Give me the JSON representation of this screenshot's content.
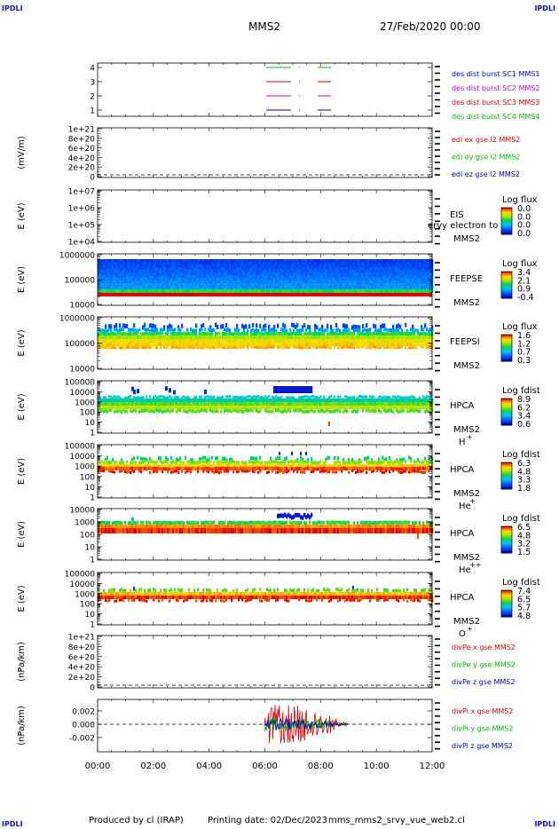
{
  "corner_tag": "IPDLI",
  "header": {
    "spacecraft": "MMS2",
    "date": "27/Feb/2020 00:00"
  },
  "footer": {
    "produced_by": "Produced by cl (IRAP)",
    "printing_date": "Printing date: 02/Dec/2023",
    "filename": "mms_mms2_srvy_vue_web2.cl"
  },
  "colors": {
    "blue": "#0000cc",
    "red": "#dd0000",
    "magenta": "#cc00cc",
    "green": "#00bb00",
    "black": "#000000"
  },
  "chart_data": {
    "type": "multi-panel",
    "x_axis": {
      "range": [
        "00:00",
        "12:00"
      ],
      "ticks": [
        "00:00",
        "02:00",
        "04:00",
        "06:00",
        "08:00",
        "10:00",
        "12:00"
      ]
    },
    "panels": [
      {
        "id": "burst",
        "kind": "burst",
        "ylabel": "",
        "yticks": [
          "4",
          "3",
          "2",
          "1"
        ],
        "legend": [
          {
            "text": "des dist burst SC1 MMS1",
            "color": "#0000cc"
          },
          {
            "text": "des dist burst SC2 MMS2",
            "color": "#cc00cc"
          },
          {
            "text": "des dist burst SC3 MMS3",
            "color": "#dd0000"
          },
          {
            "text": "des dist burst SC4 MMS4",
            "color": "#00bb00"
          }
        ]
      },
      {
        "id": "edi",
        "kind": "line-empty",
        "ylabel": "(mV/m)",
        "yticks": [
          "1e+21",
          "8e+20",
          "6e+20",
          "4e+20",
          "2e+20",
          "0"
        ],
        "legend": [
          {
            "text": "edi ex gse l2 MMS2",
            "color": "#dd0000"
          },
          {
            "text": "edi ey gse l2 MMS2",
            "color": "#00bb00"
          },
          {
            "text": "edi ez gse l2 MMS2",
            "color": "#0000cc"
          }
        ]
      },
      {
        "id": "eis",
        "kind": "spectro-empty",
        "ylabel": "E (eV)",
        "yticks": [
          "1e+07",
          "1e+06",
          "1e+05",
          "1e+04"
        ],
        "label1": "EIS",
        "label2": "MMS2",
        "overlay": "ervy electron to",
        "cbar_title": "Log flux",
        "cbar_ticks": [
          "0.0",
          "0.0",
          "0.0",
          "0.0"
        ]
      },
      {
        "id": "feepse",
        "kind": "spectro",
        "ylabel": "E (eV)",
        "yticks": [
          "1000000",
          "100000",
          "10000"
        ],
        "label1": "FEEPSE",
        "label2": "MMS2",
        "cbar_title": "Log flux",
        "cbar_ticks": [
          "3.4",
          "2.1",
          "0.9",
          "-0.4"
        ]
      },
      {
        "id": "feepsi",
        "kind": "spectro",
        "ylabel": "E (eV)",
        "yticks": [
          "1000000",
          "100000",
          "10000"
        ],
        "label1": "FEEPSI",
        "label2": "MMS2",
        "cbar_title": "Log flux",
        "cbar_ticks": [
          "1.6",
          "1.2",
          "0.7",
          "0.3"
        ]
      },
      {
        "id": "hpca_h",
        "kind": "spectro",
        "ylabel": "E (eV)",
        "yticks": [
          "100000",
          "10000",
          "1000",
          "100",
          "10",
          "1"
        ],
        "label1": "HPCA",
        "label2": "MMS2",
        "species": "H",
        "charge": "+",
        "cbar_title": "Log fdist",
        "cbar_ticks": [
          "8.9",
          "6.2",
          "3.4",
          "0.6"
        ]
      },
      {
        "id": "hpca_he1",
        "kind": "spectro",
        "ylabel": "E (eV)",
        "yticks": [
          "100000",
          "10000",
          "1000",
          "100",
          "10",
          "1"
        ],
        "label1": "HPCA",
        "label2": "MMS2",
        "species": "He",
        "charge": "+",
        "cbar_title": "Log fdist",
        "cbar_ticks": [
          "6.3",
          "4.8",
          "3.3",
          "1.8"
        ]
      },
      {
        "id": "hpca_he2",
        "kind": "spectro",
        "ylabel": "E (eV)",
        "yticks": [
          "10000",
          "1000",
          "100",
          "10",
          "1"
        ],
        "label1": "HPCA",
        "label2": "MMS2",
        "species": "He",
        "charge": "++",
        "cbar_title": "Log fdist",
        "cbar_ticks": [
          "6.5",
          "4.8",
          "3.2",
          "1.5"
        ]
      },
      {
        "id": "hpca_o",
        "kind": "spectro",
        "ylabel": "E (eV)",
        "yticks": [
          "100000",
          "10000",
          "1000",
          "100",
          "10",
          "1"
        ],
        "label1": "HPCA",
        "label2": "MMS2",
        "species": "O",
        "charge": "+",
        "cbar_title": "Log fdist",
        "cbar_ticks": [
          "7.4",
          "6.5",
          "5.7",
          "4.8"
        ]
      },
      {
        "id": "divpe",
        "kind": "line-empty",
        "ylabel": "(nPa/km)",
        "yticks": [
          "1e+21",
          "8e+20",
          "6e+20",
          "4e+20",
          "2e+20",
          "0"
        ],
        "legend": [
          {
            "text": "divPe x gse MMS2",
            "color": "#dd0000"
          },
          {
            "text": "divPe y gse MMS2",
            "color": "#00bb00"
          },
          {
            "text": "divPe z gse MMS2",
            "color": "#0000cc"
          }
        ]
      },
      {
        "id": "divpi",
        "kind": "line",
        "ylabel": "(nPa/km)",
        "yticks": [
          "0.002",
          "0.000",
          "-0.002"
        ],
        "legend": [
          {
            "text": "divPi x gse MMS2",
            "color": "#dd0000"
          },
          {
            "text": "divPi y gse MMS2",
            "color": "#00bb00"
          },
          {
            "text": "divPi z gse MMS2",
            "color": "#0000cc"
          }
        ]
      }
    ]
  }
}
